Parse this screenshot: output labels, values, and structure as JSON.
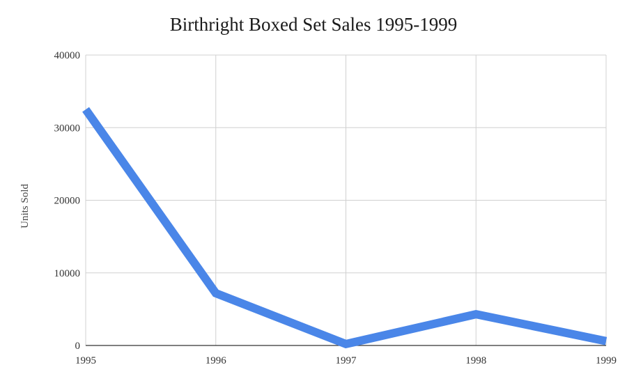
{
  "chart_data": {
    "type": "line",
    "title": "Birthright Boxed Set Sales 1995-1999",
    "xlabel": "",
    "ylabel": "Units Sold",
    "categories": [
      "1995",
      "1996",
      "1997",
      "1998",
      "1999"
    ],
    "series": [
      {
        "values": [
          32500,
          7200,
          200,
          4300,
          600
        ],
        "color": "#4a86e8"
      }
    ],
    "ylim": [
      0,
      40000
    ],
    "yticks": [
      0,
      10000,
      20000,
      30000,
      40000
    ],
    "ytick_labels": [
      "0",
      "10000",
      "20000",
      "30000",
      "40000"
    ],
    "grid": true,
    "legend": "none"
  }
}
